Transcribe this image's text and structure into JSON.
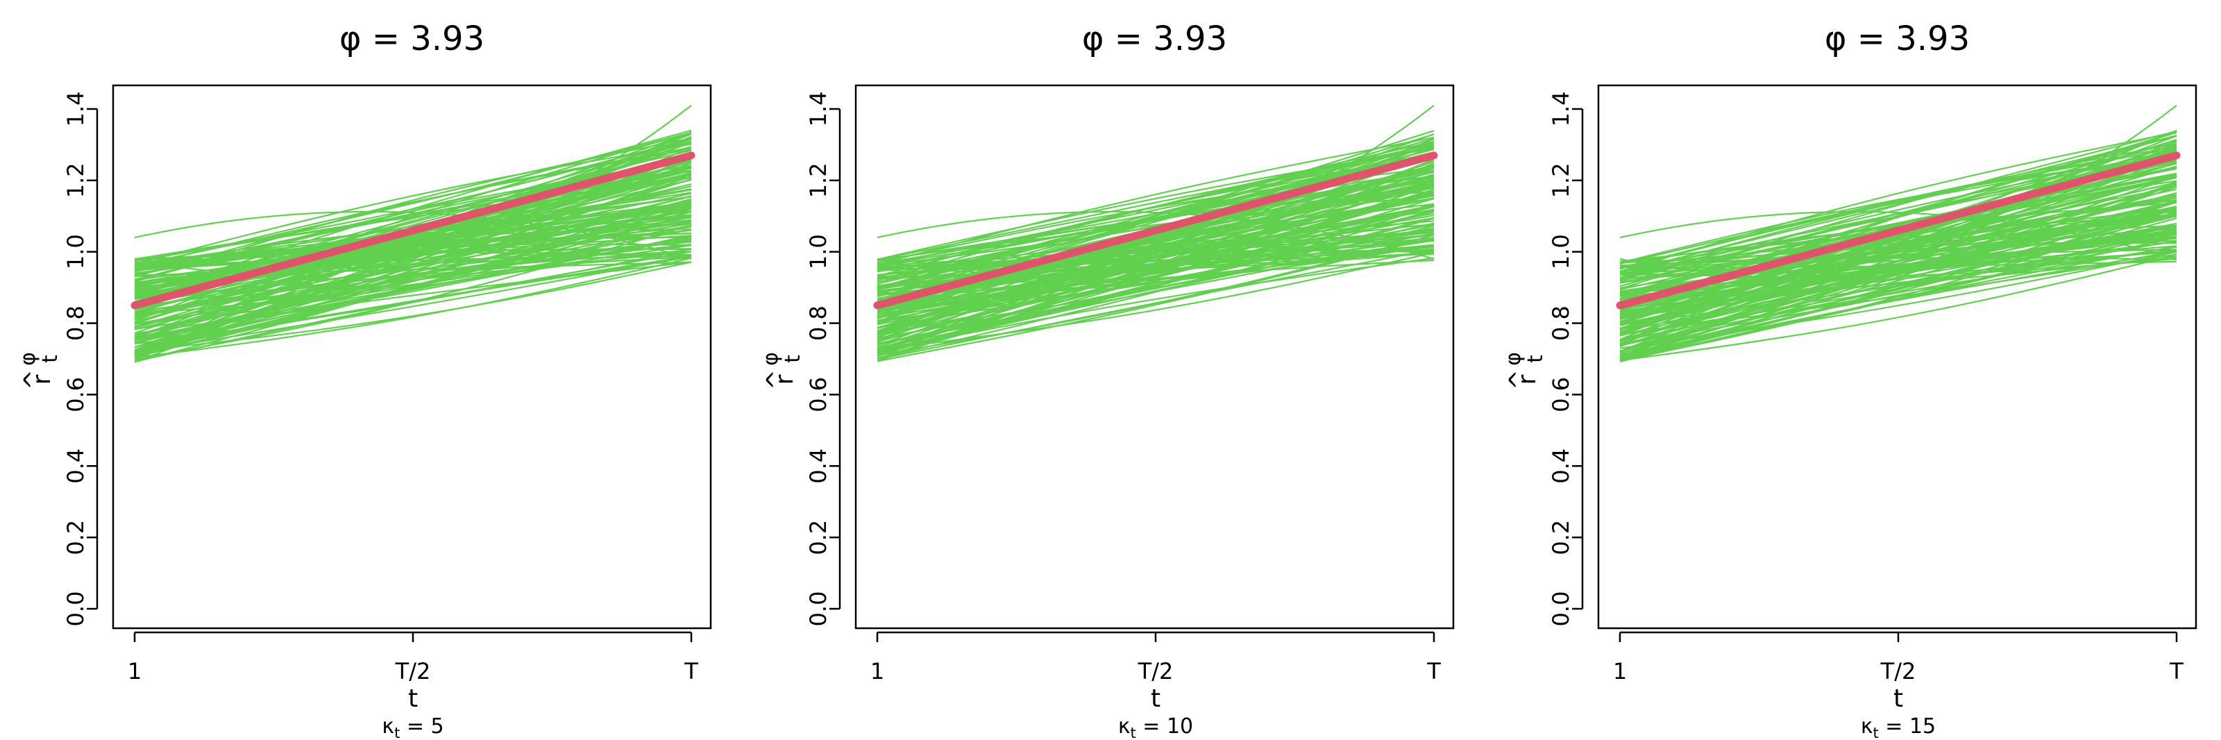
{
  "colors": {
    "samples": "#61D04F",
    "truth": "#DF536B",
    "axis": "#000000",
    "background": "#FFFFFF"
  },
  "chart_data": [
    {
      "type": "line",
      "title": "φ = 3.93",
      "xlabel": "t",
      "ylabel": {
        "main": "r",
        "superscript": "φ",
        "subscript": "t",
        "accent": "^"
      },
      "subtitle": {
        "symbol": "κ",
        "subscript": "t",
        "suffix": " = 5"
      },
      "x_ticks": [
        "1",
        "T/2",
        "T"
      ],
      "y_ticks": [
        "0.0",
        "0.2",
        "0.4",
        "0.6",
        "0.8",
        "1.0",
        "1.2",
        "1.4"
      ],
      "ylim": [
        0,
        1.4
      ],
      "grid": false,
      "series": [
        {
          "role": "truth",
          "x": [
            0,
            0.5,
            1
          ],
          "values": [
            0.85,
            1.06,
            1.27
          ]
        },
        {
          "role": "samples",
          "count": 150,
          "start_range": [
            0.69,
            0.98
          ],
          "end_range": [
            0.97,
            1.34
          ],
          "outliers": [
            {
              "values": [
                1.04,
                1.11,
                0.98
              ]
            },
            {
              "values": [
                0.98,
                1.0,
                1.41
              ]
            }
          ]
        }
      ]
    },
    {
      "type": "line",
      "title": "φ = 3.93",
      "xlabel": "t",
      "ylabel": {
        "main": "r",
        "superscript": "φ",
        "subscript": "t",
        "accent": "^"
      },
      "subtitle": {
        "symbol": "κ",
        "subscript": "t",
        "suffix": " = 10"
      },
      "x_ticks": [
        "1",
        "T/2",
        "T"
      ],
      "y_ticks": [
        "0.0",
        "0.2",
        "0.4",
        "0.6",
        "0.8",
        "1.0",
        "1.2",
        "1.4"
      ],
      "ylim": [
        0,
        1.4
      ],
      "grid": false,
      "series": [
        {
          "role": "truth",
          "x": [
            0,
            0.5,
            1
          ],
          "values": [
            0.85,
            1.06,
            1.27
          ]
        },
        {
          "role": "samples",
          "count": 150,
          "start_range": [
            0.69,
            0.98
          ],
          "end_range": [
            0.97,
            1.34
          ],
          "outliers": [
            {
              "values": [
                1.04,
                1.11,
                0.98
              ]
            },
            {
              "values": [
                0.98,
                1.0,
                1.41
              ]
            }
          ]
        }
      ]
    },
    {
      "type": "line",
      "title": "φ = 3.93",
      "xlabel": "t",
      "ylabel": {
        "main": "r",
        "superscript": "φ",
        "subscript": "t",
        "accent": "^"
      },
      "subtitle": {
        "symbol": "κ",
        "subscript": "t",
        "suffix": " = 15"
      },
      "x_ticks": [
        "1",
        "T/2",
        "T"
      ],
      "y_ticks": [
        "0.0",
        "0.2",
        "0.4",
        "0.6",
        "0.8",
        "1.0",
        "1.2",
        "1.4"
      ],
      "ylim": [
        0,
        1.4
      ],
      "grid": false,
      "series": [
        {
          "role": "truth",
          "x": [
            0,
            0.5,
            1
          ],
          "values": [
            0.85,
            1.06,
            1.27
          ]
        },
        {
          "role": "samples",
          "count": 150,
          "start_range": [
            0.69,
            0.98
          ],
          "end_range": [
            0.97,
            1.34
          ],
          "outliers": [
            {
              "values": [
                1.04,
                1.11,
                0.98
              ]
            },
            {
              "values": [
                0.98,
                1.0,
                1.41
              ]
            }
          ]
        }
      ]
    }
  ]
}
